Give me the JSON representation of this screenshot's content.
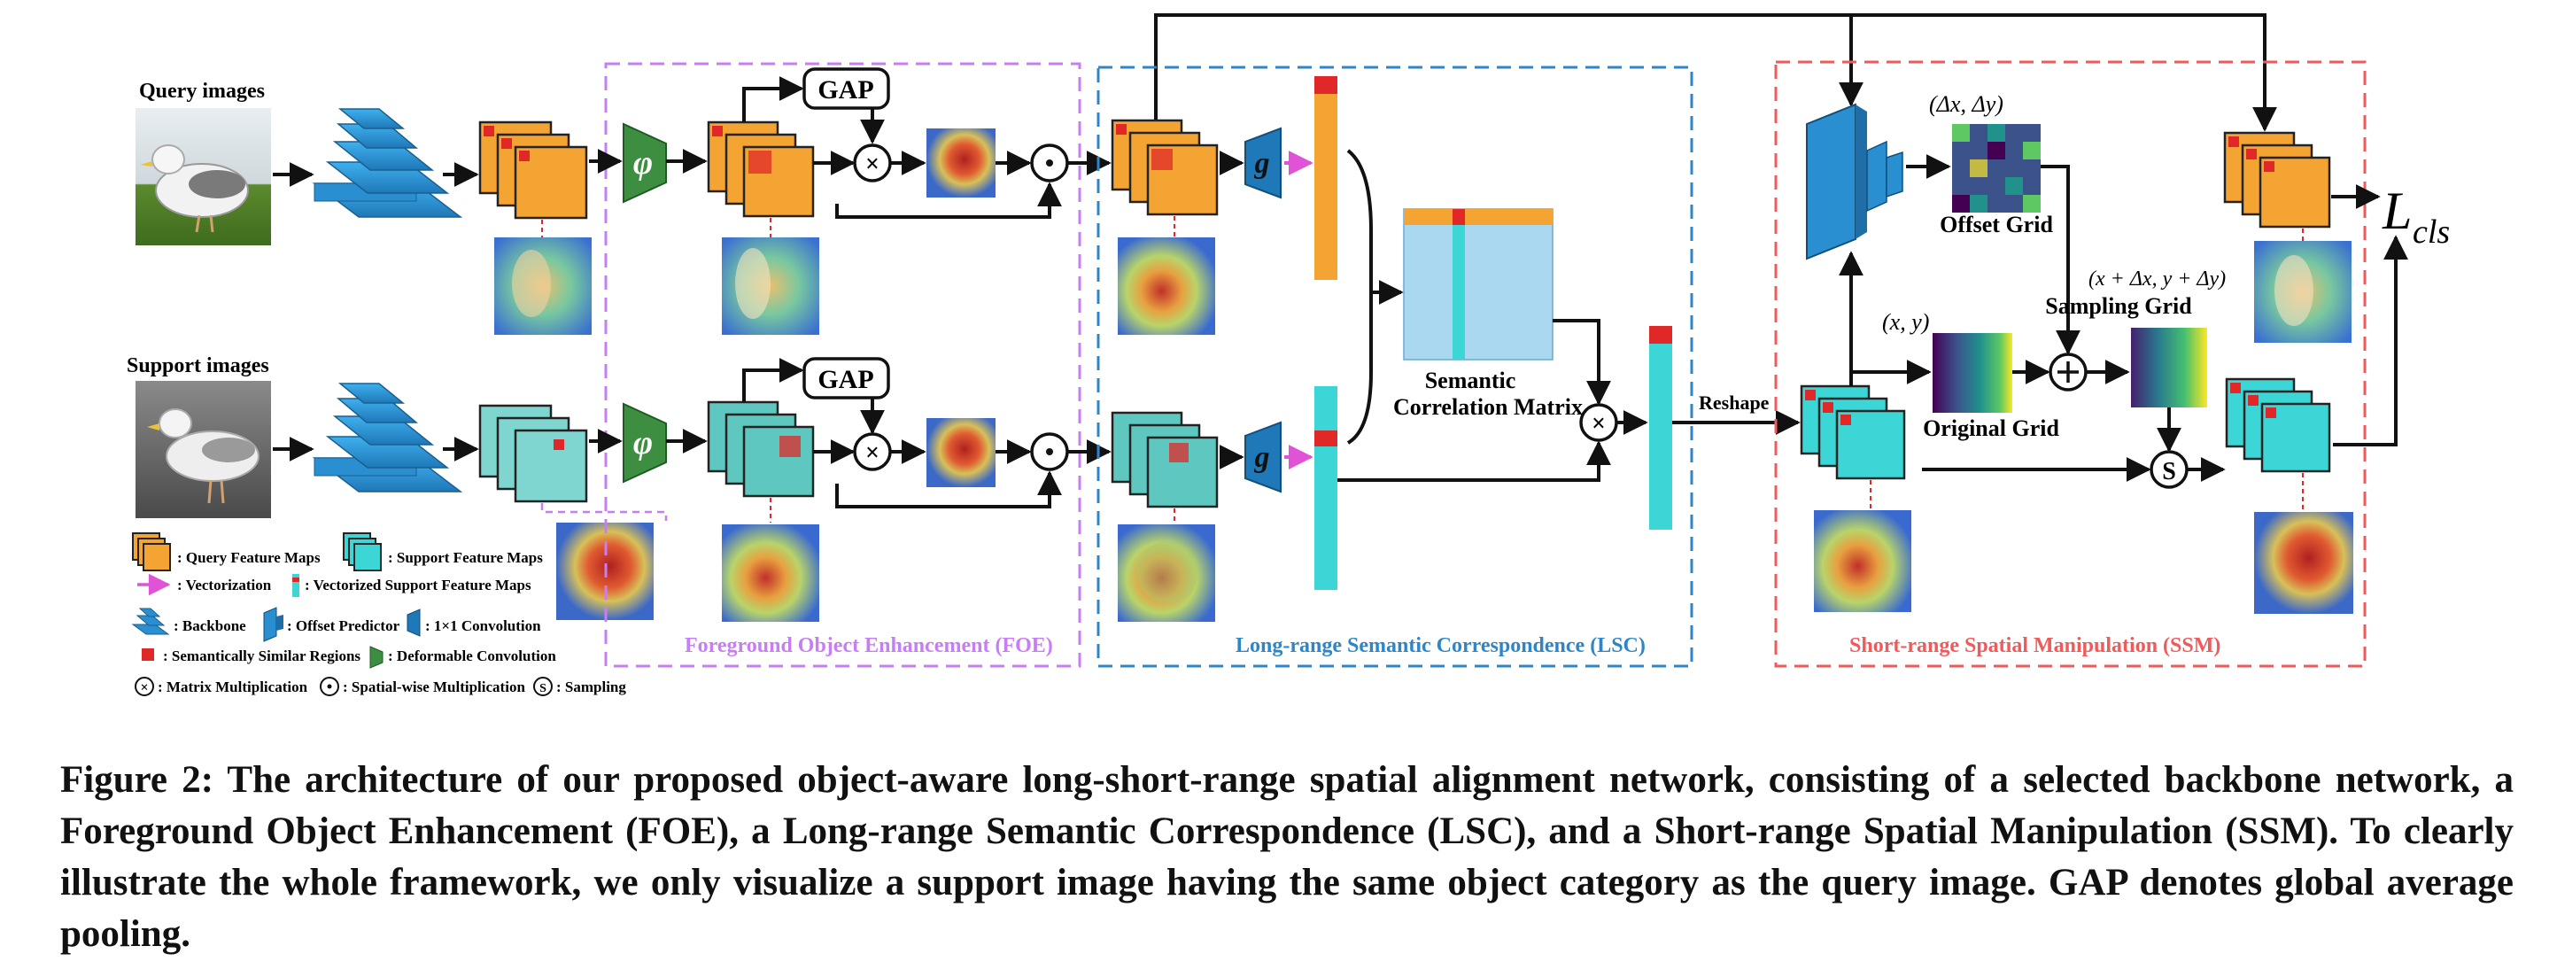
{
  "labels": {
    "query_images": "Query images",
    "support_images": "Support images",
    "gap": "GAP",
    "phi": "φ",
    "g": "g",
    "semantic_correlation_matrix_line1": "Semantic",
    "semantic_correlation_matrix_line2": "Correlation Matrix",
    "reshape": "Reshape",
    "delta": "(Δx, Δy)",
    "offset_grid": "Offset Grid",
    "xy": "(x, y)",
    "original_grid": "Original Grid",
    "sampling_formula": "(x + Δx, y + Δy)",
    "sampling_grid": "Sampling Grid",
    "loss_main": "L",
    "loss_sub": "cls",
    "sampling_symbol": "S"
  },
  "modules": {
    "foe": "Foreground Object Enhancement (FOE)",
    "lsc": "Long-range Semantic Correspondence (LSC)",
    "ssm": "Short-range Spatial Manipulation (SSM)"
  },
  "legend": {
    "query_maps": ": Query Feature Maps",
    "support_maps": ": Support Feature Maps",
    "vectorization": ": Vectorization",
    "vectorized_support": ": Vectorized Support Feature Maps",
    "backbone": ": Backbone",
    "offset_predictor": ": Offset Predictor",
    "conv1x1": ": 1×1 Convolution",
    "similar_regions": ": Semantically Similar Regions",
    "deformable_conv": ": Deformable Convolution",
    "matrix_mult": ": Matrix Multiplication",
    "spatial_mult": ": Spatial-wise Multiplication",
    "sampling": ": Sampling"
  },
  "caption": "Figure 2: The architecture of our proposed object-aware long-short-range spatial alignment network, consisting of a selected backbone network, a Foreground Object Enhancement (FOE), a Long-range Semantic Correspondence (LSC), and a Short-range Spatial Manipulation (SSM). To clearly illustrate the whole framework, we only visualize a support image having the same object category as the query image. GAP denotes global average pooling.",
  "colors": {
    "query_orange": "#F4A433",
    "support_teal": "#3DD6D6",
    "support_teal_light": "#7FD6D0",
    "backbone_blue": "#2E9BD8",
    "phi_green": "#3E8E41",
    "foe_purple": "#C77DF3",
    "lsc_blue": "#2E86C8",
    "ssm_red": "#F05A5A",
    "vectorization_magenta": "#E052D6",
    "highlight_red": "#E02828"
  }
}
